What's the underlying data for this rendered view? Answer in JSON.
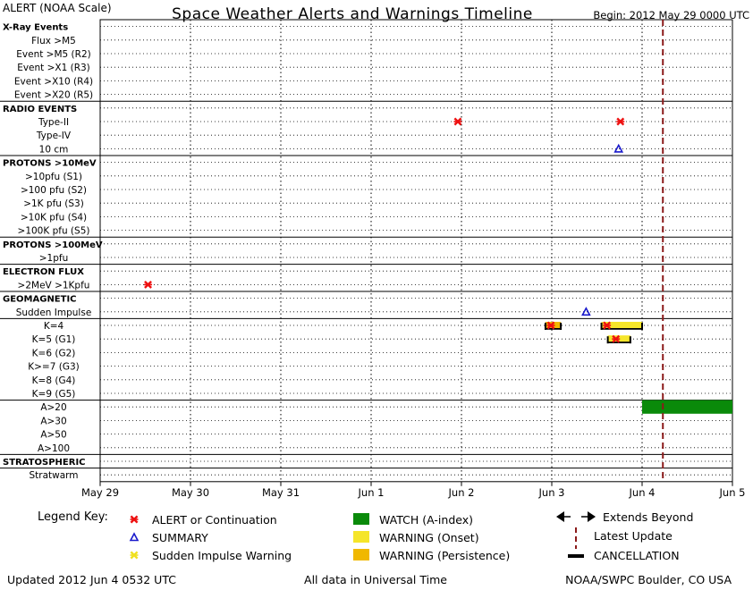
{
  "header": {
    "top_left": "ALERT (NOAA Scale)",
    "title": "Space Weather Alerts and Warnings Timeline",
    "begin": "Begin: 2012 May 29 0000 UTC"
  },
  "rows": [
    {
      "label": "X-Ray Events",
      "bold": true,
      "line_above": false
    },
    {
      "label": "Flux >M5",
      "bold": false
    },
    {
      "label": "Event >M5 (R2)",
      "bold": false
    },
    {
      "label": "Event >X1 (R3)",
      "bold": false
    },
    {
      "label": "Event >X10 (R4)",
      "bold": false
    },
    {
      "label": "Event >X20 (R5)",
      "bold": false
    },
    {
      "label": "RADIO EVENTS",
      "bold": true,
      "line_above": true
    },
    {
      "label": "Type-II",
      "bold": false
    },
    {
      "label": "Type-IV",
      "bold": false
    },
    {
      "label": "10 cm",
      "bold": false
    },
    {
      "label": "PROTONS >10MeV",
      "bold": true,
      "line_above": true
    },
    {
      "label": ">10pfu (S1)",
      "bold": false
    },
    {
      "label": ">100 pfu (S2)",
      "bold": false
    },
    {
      "label": ">1K pfu (S3)",
      "bold": false
    },
    {
      "label": ">10K pfu (S4)",
      "bold": false
    },
    {
      "label": ">100K pfu (S5)",
      "bold": false
    },
    {
      "label": "PROTONS >100MeV",
      "bold": true,
      "line_above": true
    },
    {
      "label": ">1pfu",
      "bold": false
    },
    {
      "label": "ELECTRON FLUX",
      "bold": true,
      "line_above": true
    },
    {
      "label": ">2MeV >1Kpfu",
      "bold": false
    },
    {
      "label": "GEOMAGNETIC",
      "bold": true,
      "line_above": true
    },
    {
      "label": "Sudden Impulse",
      "bold": false
    },
    {
      "label": "K=4",
      "bold": false,
      "line_above": true
    },
    {
      "label": "K=5 (G1)",
      "bold": false
    },
    {
      "label": "K=6 (G2)",
      "bold": false
    },
    {
      "label": "K>=7 (G3)",
      "bold": false
    },
    {
      "label": "K=8 (G4)",
      "bold": false
    },
    {
      "label": "K=9 (G5)",
      "bold": false
    },
    {
      "label": "A>20",
      "bold": false,
      "line_above": true
    },
    {
      "label": "A>30",
      "bold": false
    },
    {
      "label": "A>50",
      "bold": false
    },
    {
      "label": "A>100",
      "bold": false
    },
    {
      "label": "STRATOSPHERIC",
      "bold": true,
      "line_above": true
    },
    {
      "label": "Stratwarm",
      "bold": false,
      "line_above": true
    }
  ],
  "chart_data": {
    "type": "timeline",
    "x_start": "2012-05-29T00:00Z",
    "x_range_days": [
      0,
      7
    ],
    "x_ticks": [
      "May 29",
      "May 30",
      "May 31",
      "Jun 1",
      "Jun 2",
      "Jun 3",
      "Jun 4",
      "Jun 5"
    ],
    "latest_update_day": 6.23,
    "events": [
      {
        "row": 19,
        "kind": "alert",
        "day": 0.53
      },
      {
        "row": 7,
        "kind": "alert",
        "day": 3.96
      },
      {
        "row": 7,
        "kind": "alert",
        "day": 5.76
      },
      {
        "row": 9,
        "kind": "summary",
        "day": 5.74
      },
      {
        "row": 21,
        "kind": "summary",
        "day": 5.38
      },
      {
        "row": 22,
        "kind": "alert",
        "day": 4.99
      },
      {
        "row": 22,
        "kind": "alert",
        "day": 5.61
      },
      {
        "row": 23,
        "kind": "alert",
        "day": 5.71
      },
      {
        "row": 22,
        "kind": "warning_persistence",
        "start": 4.93,
        "end": 5.1
      },
      {
        "row": 22,
        "kind": "warning_onset",
        "start": 5.55,
        "end": 6.0
      },
      {
        "row": 23,
        "kind": "warning_onset",
        "start": 5.62,
        "end": 5.87
      },
      {
        "row": 28,
        "kind": "watch",
        "start": 6.0,
        "end": 7.0
      }
    ]
  },
  "legend": {
    "title": "Legend Key:",
    "items": [
      {
        "key": "alert",
        "label": "ALERT or Continuation"
      },
      {
        "key": "summary",
        "label": "SUMMARY"
      },
      {
        "key": "sudden_impulse_warning",
        "label": "Sudden Impulse Warning"
      },
      {
        "key": "watch",
        "label": "WATCH (A-index)"
      },
      {
        "key": "warning_onset",
        "label": "WARNING (Onset)"
      },
      {
        "key": "warning_persistence",
        "label": "WARNING (Persistence)"
      },
      {
        "key": "extends",
        "label": "Extends Beyond"
      },
      {
        "key": "latest",
        "label": "Latest Update"
      },
      {
        "key": "cancellation",
        "label": "CANCELLATION"
      }
    ]
  },
  "footer": {
    "updated": "Updated 2012 Jun  4 0532 UTC",
    "note": "All data in Universal Time",
    "source": "NOAA/SWPC Boulder, CO USA"
  },
  "colors": {
    "alert": "#ee1111",
    "summary": "#1a1acc",
    "sudden_impulse_warning": "#f0e020",
    "watch": "#0a8a0a",
    "warning_onset": "#f5e52a",
    "warning_persistence": "#f0b800",
    "latest": "#8b1a1a",
    "cancellation": "#000000"
  }
}
